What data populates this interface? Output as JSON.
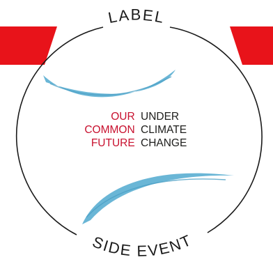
{
  "logo": {
    "top_label": "LABEL",
    "bottom_label": "SIDE EVENT",
    "lines": [
      {
        "accent": "OUR",
        "rest": "UNDER"
      },
      {
        "accent": "COMMON",
        "rest": "CLIMATE"
      },
      {
        "accent": "FUTURE",
        "rest": "CHANGE"
      }
    ]
  },
  "colors": {
    "band_red": "#e8131a",
    "accent_red": "#c8102e",
    "ink": "#1d1d1b",
    "brush_blue": "#5aaed1",
    "ring": "#1a1a1a"
  }
}
